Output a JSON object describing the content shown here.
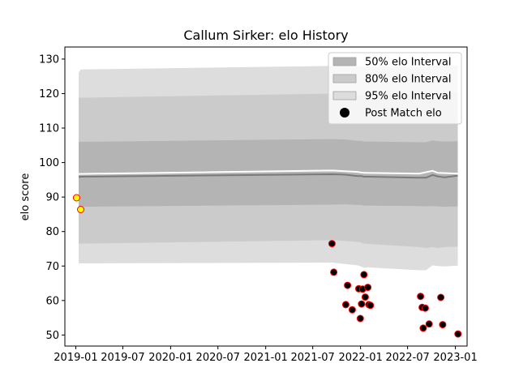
{
  "chart_data": {
    "type": "area",
    "title": "Callum Sirker: elo History",
    "xlabel": "",
    "ylabel": "elo score",
    "x_axis": {
      "type": "date",
      "min": "2018-11-20",
      "max": "2023-02-15"
    },
    "ylim": [
      46.8,
      133.5
    ],
    "x_ticks": [
      {
        "date": "2019-01-01",
        "label": "2019-01"
      },
      {
        "date": "2019-07-01",
        "label": "2019-07"
      },
      {
        "date": "2020-01-01",
        "label": "2020-01"
      },
      {
        "date": "2020-07-01",
        "label": "2020-07"
      },
      {
        "date": "2021-01-01",
        "label": "2021-01"
      },
      {
        "date": "2021-07-01",
        "label": "2021-07"
      },
      {
        "date": "2022-01-01",
        "label": "2022-01"
      },
      {
        "date": "2022-07-01",
        "label": "2022-07"
      },
      {
        "date": "2023-01-01",
        "label": "2023-01"
      }
    ],
    "y_ticks": [
      50,
      60,
      70,
      80,
      90,
      100,
      110,
      120,
      130
    ],
    "grid": false,
    "legend_position": "top-right",
    "legend": [
      {
        "label": "50% elo Interval",
        "kind": "patch",
        "color": "#b4b4b4"
      },
      {
        "label": "80% elo Interval",
        "kind": "patch",
        "color": "#cbcbcb"
      },
      {
        "label": "95% elo Interval",
        "kind": "patch",
        "color": "#dddddd"
      },
      {
        "label": "Post Match elo",
        "kind": "marker",
        "color": "#000000"
      }
    ],
    "interval_series": {
      "dates": [
        "2019-01-12",
        "2019-01-20",
        "2021-09-15",
        "2021-11-01",
        "2021-12-20",
        "2022-01-05",
        "2022-01-12",
        "2022-02-01",
        "2022-08-15",
        "2022-09-10",
        "2022-10-05",
        "2022-10-25",
        "2022-11-20",
        "2023-01-10"
      ],
      "mean": [
        95.8,
        95.9,
        96.6,
        96.5,
        96.1,
        96.1,
        95.9,
        95.9,
        95.6,
        95.6,
        96.4,
        96.0,
        95.7,
        96.2
      ],
      "ci50": {
        "lower": [
          87.2,
          87.2,
          87.8,
          87.9,
          87.7,
          87.7,
          87.5,
          87.5,
          87.4,
          87.3,
          87.4,
          87.3,
          87.2,
          87.3
        ],
        "upper": [
          106.0,
          106.0,
          106.8,
          106.7,
          106.3,
          106.3,
          106.1,
          106.1,
          105.9,
          105.9,
          106.4,
          106.2,
          106.1,
          106.2
        ]
      },
      "ci80": {
        "lower": [
          76.5,
          76.5,
          77.5,
          77.3,
          77.0,
          76.8,
          76.5,
          76.4,
          75.5,
          75.2,
          75.5,
          75.2,
          75.5,
          75.6
        ],
        "upper": [
          118.8,
          118.8,
          120.0,
          120.0,
          119.6,
          119.6,
          119.6,
          119.6,
          119.5,
          119.6,
          120.2,
          120.2,
          120.3,
          120.3
        ]
      },
      "ci95": {
        "lower": [
          70.8,
          70.8,
          71.0,
          70.6,
          70.2,
          69.8,
          69.5,
          69.6,
          68.8,
          68.8,
          70.2,
          70.0,
          69.9,
          70.1
        ],
        "upper": [
          126.0,
          127.0,
          128.0,
          128.0,
          127.8,
          127.8,
          127.8,
          127.8,
          127.7,
          127.7,
          128.0,
          128.0,
          128.0,
          128.0
        ]
      }
    },
    "rating_line": {
      "color": "#ffffff",
      "dates": [
        "2019-01-12",
        "2021-09-15",
        "2021-12-20",
        "2022-01-12",
        "2022-08-15",
        "2022-10-05",
        "2022-10-25",
        "2023-01-10"
      ],
      "values": [
        96.7,
        97.7,
        97.3,
        97.0,
        96.8,
        97.6,
        97.0,
        96.8
      ]
    },
    "points": [
      {
        "date": "2019-01-04",
        "elo": 89.8,
        "style": "yellow"
      },
      {
        "date": "2019-01-20",
        "elo": 86.4,
        "style": "yellow"
      },
      {
        "date": "2021-09-13",
        "elo": 76.5,
        "style": "black"
      },
      {
        "date": "2021-09-20",
        "elo": 68.2,
        "style": "black"
      },
      {
        "date": "2021-11-05",
        "elo": 58.8,
        "style": "black"
      },
      {
        "date": "2021-11-12",
        "elo": 64.4,
        "style": "black"
      },
      {
        "date": "2021-11-30",
        "elo": 57.3,
        "style": "black"
      },
      {
        "date": "2021-12-25",
        "elo": 63.4,
        "style": "black"
      },
      {
        "date": "2021-12-31",
        "elo": 54.8,
        "style": "black"
      },
      {
        "date": "2022-01-05",
        "elo": 59.0,
        "style": "black"
      },
      {
        "date": "2022-01-09",
        "elo": 63.3,
        "style": "black"
      },
      {
        "date": "2022-01-14",
        "elo": 67.5,
        "style": "black"
      },
      {
        "date": "2022-01-19",
        "elo": 61.0,
        "style": "black"
      },
      {
        "date": "2022-01-29",
        "elo": 63.8,
        "style": "black"
      },
      {
        "date": "2022-02-02",
        "elo": 58.8,
        "style": "black"
      },
      {
        "date": "2022-02-08",
        "elo": 58.6,
        "style": "black"
      },
      {
        "date": "2022-08-20",
        "elo": 61.2,
        "style": "black"
      },
      {
        "date": "2022-08-26",
        "elo": 58.0,
        "style": "black"
      },
      {
        "date": "2022-08-30",
        "elo": 52.0,
        "style": "black"
      },
      {
        "date": "2022-09-07",
        "elo": 57.8,
        "style": "black"
      },
      {
        "date": "2022-09-22",
        "elo": 53.2,
        "style": "black"
      },
      {
        "date": "2022-11-06",
        "elo": 60.9,
        "style": "black"
      },
      {
        "date": "2022-11-13",
        "elo": 53.0,
        "style": "black"
      },
      {
        "date": "2023-01-11",
        "elo": 50.3,
        "style": "black"
      }
    ],
    "colors": {
      "ci50": "#b4b4b4",
      "ci80": "#cbcbcb",
      "ci95": "#dddddd",
      "mean_line": "#7a7a7a",
      "point_yellow_fill": "#ffff00",
      "point_black_fill": "#000000",
      "point_edge": "#ff0000"
    }
  }
}
